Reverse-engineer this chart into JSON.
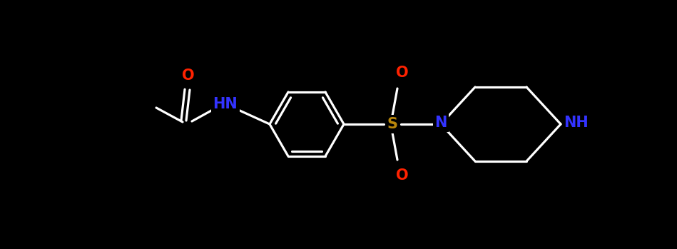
{
  "background_color": "#000000",
  "bond_color": "#ffffff",
  "N_color": "#3333ff",
  "O_color": "#ff2200",
  "S_color": "#b8860b",
  "figsize": [
    9.49,
    3.49
  ],
  "dpi": 100,
  "bond_lw": 2.3,
  "font_size": 15,
  "font_weight": "bold",
  "xlim": [
    0.0,
    9.49
  ],
  "ylim": [
    0.0,
    3.49
  ]
}
